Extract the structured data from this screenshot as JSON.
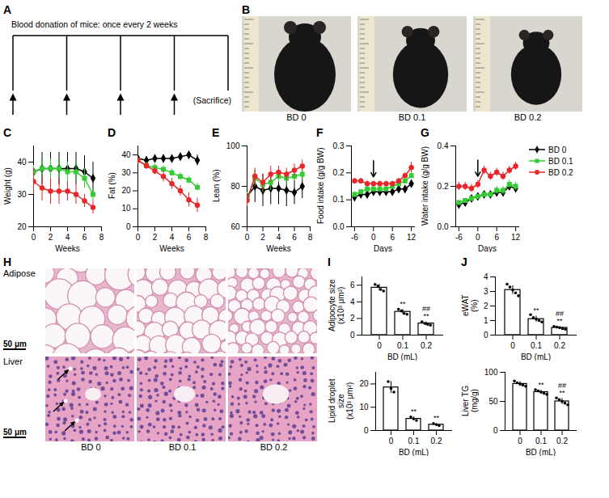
{
  "diagram": {
    "panel": "A",
    "title": "Blood donation of mice: once every 2 weeks",
    "end_label": "(Sacrifice)",
    "arrows": 4
  },
  "photos": {
    "panel": "B",
    "labels": [
      "BD 0",
      "BD 0.1",
      "BD 0.2"
    ]
  },
  "histology": {
    "panel": "H",
    "row_labels": [
      "Adipose",
      "Liver"
    ],
    "column_labels": [
      "BD 0",
      "BD 0.1",
      "BD 0.2"
    ],
    "scale_bar": "50 μm"
  },
  "chart_data": [
    {
      "panel": "C",
      "type": "line",
      "x_label": "Weeks",
      "y_label": "Weight (g)",
      "x": [
        0,
        1,
        2,
        3,
        4,
        5,
        6,
        7
      ],
      "xlim": [
        0,
        8
      ],
      "xticks": [
        0,
        2,
        4,
        6,
        8
      ],
      "ylim": [
        20,
        45
      ],
      "yticks": [
        20,
        30,
        40
      ],
      "series": [
        {
          "name": "BD 0",
          "color": "#000000",
          "marker": "diamond",
          "values": [
            37,
            38,
            38,
            38,
            38,
            38,
            37,
            35
          ],
          "errors": [
            5,
            5,
            5,
            5,
            5,
            5,
            5,
            5
          ]
        },
        {
          "name": "BD 0.1",
          "color": "#33cc33",
          "marker": "square",
          "values": [
            37,
            38,
            38,
            38,
            37,
            37,
            35,
            30
          ],
          "errors": [
            2,
            3,
            3,
            3,
            3,
            3,
            3,
            2
          ]
        },
        {
          "name": "BD 0.2",
          "color": "#e8272a",
          "marker": "circle",
          "values": [
            34,
            32,
            31,
            31,
            31,
            30,
            28,
            26
          ],
          "errors": [
            4,
            4,
            4,
            4,
            3,
            3,
            2,
            2
          ]
        }
      ]
    },
    {
      "panel": "D",
      "type": "line",
      "x_label": "Weeks",
      "y_label": "Fat (%)",
      "x": [
        0,
        1,
        2,
        3,
        4,
        5,
        6,
        7
      ],
      "xlim": [
        0,
        8
      ],
      "xticks": [
        0,
        2,
        4,
        6,
        8
      ],
      "ylim": [
        0,
        45
      ],
      "yticks": [
        0,
        10,
        20,
        30,
        40
      ],
      "series": [
        {
          "name": "BD 0",
          "color": "#000000",
          "marker": "diamond",
          "values": [
            38,
            37,
            38,
            38,
            38,
            39,
            40,
            37
          ],
          "errors": [
            2,
            2,
            2,
            2,
            2,
            2,
            2,
            3
          ]
        },
        {
          "name": "BD 0.1",
          "color": "#33cc33",
          "marker": "square",
          "values": [
            37,
            34,
            33,
            32,
            30,
            28,
            26,
            22
          ],
          "errors": [
            2,
            2,
            2,
            2,
            2,
            2,
            2,
            2
          ]
        },
        {
          "name": "BD 0.2",
          "color": "#e8272a",
          "marker": "circle",
          "values": [
            37,
            34,
            31,
            28,
            24,
            20,
            15,
            12
          ],
          "errors": [
            2,
            2,
            2,
            3,
            3,
            3,
            4,
            4
          ]
        }
      ]
    },
    {
      "panel": "E",
      "type": "line",
      "x_label": "Weeks",
      "y_label": "Lean (%)",
      "x": [
        0,
        1,
        2,
        3,
        4,
        5,
        6,
        7
      ],
      "xlim": [
        0,
        8
      ],
      "xticks": [
        0,
        2,
        4,
        6,
        8
      ],
      "ylim": [
        60,
        100
      ],
      "yticks": [
        60,
        80,
        100
      ],
      "series": [
        {
          "name": "BD 0",
          "color": "#000000",
          "marker": "diamond",
          "values": [
            75,
            80,
            78,
            79,
            79,
            78,
            77,
            80
          ],
          "errors": [
            5,
            8,
            8,
            8,
            8,
            8,
            6,
            6
          ]
        },
        {
          "name": "BD 0.1",
          "color": "#33cc33",
          "marker": "square",
          "values": [
            74,
            84,
            81,
            82,
            85,
            84,
            85,
            86
          ],
          "errors": [
            3,
            4,
            4,
            4,
            3,
            3,
            3,
            3
          ]
        },
        {
          "name": "BD 0.2",
          "color": "#e8272a",
          "marker": "circle",
          "values": [
            73,
            85,
            82,
            86,
            87,
            86,
            88,
            90
          ],
          "errors": [
            3,
            4,
            4,
            4,
            3,
            3,
            3,
            3
          ]
        }
      ]
    },
    {
      "panel": "F",
      "type": "line",
      "x_label": "Days",
      "y_label": "Food intake (g/g BW)",
      "x": [
        -6,
        -4,
        -2,
        0,
        2,
        4,
        6,
        8,
        10,
        12
      ],
      "xlim": [
        -7,
        13
      ],
      "xticks": [
        -6,
        0,
        6,
        12
      ],
      "ylim": [
        0,
        0.3
      ],
      "yticks": [
        {
          "value": 0,
          "label": "0.0"
        },
        0.1,
        0.2,
        0.3
      ],
      "arrow_at": 0,
      "series": [
        {
          "name": "BD 0",
          "color": "#000000",
          "marker": "diamond",
          "values": [
            0.11,
            0.12,
            0.12,
            0.13,
            0.13,
            0.13,
            0.13,
            0.14,
            0.14,
            0.16
          ],
          "errors": [
            0.01,
            0.01,
            0.01,
            0.01,
            0.01,
            0.01,
            0.01,
            0.01,
            0.01,
            0.01
          ]
        },
        {
          "name": "BD 0.1",
          "color": "#33cc33",
          "marker": "square",
          "values": [
            0.12,
            0.13,
            0.14,
            0.14,
            0.14,
            0.14,
            0.15,
            0.16,
            0.17,
            0.19
          ],
          "errors": [
            0.01,
            0.01,
            0.01,
            0.01,
            0.01,
            0.01,
            0.01,
            0.01,
            0.01,
            0.01
          ]
        },
        {
          "name": "BD 0.2",
          "color": "#e8272a",
          "marker": "circle",
          "values": [
            0.17,
            0.17,
            0.16,
            0.16,
            0.16,
            0.16,
            0.16,
            0.17,
            0.19,
            0.22
          ],
          "errors": [
            0.01,
            0.01,
            0.01,
            0.01,
            0.01,
            0.01,
            0.01,
            0.01,
            0.01,
            0.02
          ]
        }
      ]
    },
    {
      "panel": "G",
      "type": "line",
      "x_label": "Days",
      "y_label": "Water intake (g/g BW)",
      "legend": "right",
      "x": [
        -6,
        -4,
        -2,
        0,
        2,
        4,
        6,
        8,
        10,
        12
      ],
      "xlim": [
        -7,
        13
      ],
      "xticks": [
        -6,
        0,
        6,
        12
      ],
      "ylim": [
        0,
        0.4
      ],
      "yticks": [
        {
          "value": 0,
          "label": "0.0"
        },
        0.2,
        0.4
      ],
      "arrow_at": 0,
      "series": [
        {
          "name": "BD 0",
          "color": "#000000",
          "marker": "diamond",
          "values": [
            0.11,
            0.12,
            0.14,
            0.15,
            0.16,
            0.16,
            0.17,
            0.17,
            0.2,
            0.19
          ],
          "errors": [
            0.01,
            0.01,
            0.01,
            0.01,
            0.01,
            0.01,
            0.02,
            0.02,
            0.02,
            0.02
          ]
        },
        {
          "name": "BD 0.1",
          "color": "#33cc33",
          "marker": "square",
          "values": [
            0.12,
            0.13,
            0.14,
            0.15,
            0.16,
            0.16,
            0.18,
            0.18,
            0.21,
            0.2
          ],
          "errors": [
            0.01,
            0.01,
            0.01,
            0.01,
            0.01,
            0.01,
            0.02,
            0.02,
            0.02,
            0.02
          ]
        },
        {
          "name": "BD 0.2",
          "color": "#e8272a",
          "marker": "circle",
          "values": [
            0.2,
            0.2,
            0.19,
            0.21,
            0.28,
            0.25,
            0.27,
            0.25,
            0.28,
            0.3
          ],
          "errors": [
            0.02,
            0.02,
            0.02,
            0.02,
            0.02,
            0.02,
            0.02,
            0.02,
            0.02,
            0.02
          ]
        }
      ]
    },
    {
      "panel": "I",
      "type": "bar",
      "x_label": "BD (mL)",
      "y_label": "Adipocyte size (x10³ μm²)",
      "color": "#ffffff",
      "categories": [
        "0",
        "0.1",
        "0.2"
      ],
      "values": [
        5.7,
        2.8,
        1.4
      ],
      "errors": [
        0.4,
        0.3,
        0.2
      ],
      "points": [
        [
          6.1,
          5.9,
          5.5,
          5.3
        ],
        [
          3.1,
          2.9,
          2.6,
          2.5
        ],
        [
          1.6,
          1.4,
          1.3,
          1.2
        ]
      ],
      "ylim": [
        0,
        7
      ],
      "yticks": [
        0,
        2,
        4,
        6
      ],
      "annotations": [
        {
          "category": "0.1",
          "text": "**"
        },
        {
          "category": "0.2",
          "text": "**"
        },
        {
          "category": "0.2",
          "text": "##"
        }
      ]
    },
    {
      "type": "bar",
      "x_label": "BD (mL)",
      "y_label": "Lipid droplet size (x10³ μm²)",
      "color": "#ffffff",
      "categories": [
        "0",
        "0.1",
        "0.2"
      ],
      "values": [
        18.5,
        5.0,
        2.5
      ],
      "errors": [
        2.5,
        0.8,
        0.5
      ],
      "points": [
        [
          21,
          18,
          16.5
        ],
        [
          5.8,
          5.0,
          4.3
        ],
        [
          3.0,
          2.5,
          2.1
        ]
      ],
      "ylim": [
        0,
        25
      ],
      "yticks": [
        0,
        10,
        20
      ],
      "annotations": [
        {
          "category": "0.1",
          "text": "**"
        },
        {
          "category": "0.2",
          "text": "**"
        }
      ]
    },
    {
      "panel": "J",
      "type": "bar",
      "x_label": "BD (mL)",
      "y_label": "eWAT (%)",
      "color": "#ffffff",
      "categories": [
        "0",
        "0.1",
        "0.2"
      ],
      "values": [
        3.1,
        1.1,
        0.5
      ],
      "errors": [
        0.3,
        0.2,
        0.1
      ],
      "points": [
        [
          3.5,
          3.3,
          3.1,
          2.9,
          2.7
        ],
        [
          1.4,
          1.2,
          1.1,
          1.0,
          0.9
        ],
        [
          0.6,
          0.55,
          0.5,
          0.45,
          0.4
        ]
      ],
      "ylim": [
        0,
        4
      ],
      "yticks": [
        0,
        1,
        2,
        3,
        4
      ],
      "annotations": [
        {
          "category": "0.1",
          "text": "**"
        },
        {
          "category": "0.2",
          "text": "**"
        },
        {
          "category": "0.2",
          "text": "##"
        }
      ]
    },
    {
      "type": "bar",
      "x_label": "BD (mL)",
      "y_label": "Liver TG (mg/g)",
      "color": "#ffffff",
      "categories": [
        "0",
        "0.1",
        "0.2"
      ],
      "values": [
        80,
        66,
        50
      ],
      "errors": [
        4,
        3,
        5
      ],
      "points": [
        [
          85,
          82,
          80,
          78,
          76
        ],
        [
          70,
          68,
          66,
          64,
          62
        ],
        [
          56,
          53,
          50,
          47,
          44
        ]
      ],
      "ylim": [
        0,
        100
      ],
      "yticks": [
        0,
        50,
        100
      ],
      "annotations": [
        {
          "category": "0.1",
          "text": "**"
        },
        {
          "category": "0.2",
          "text": "**"
        },
        {
          "category": "0.2",
          "text": "##"
        }
      ]
    }
  ]
}
